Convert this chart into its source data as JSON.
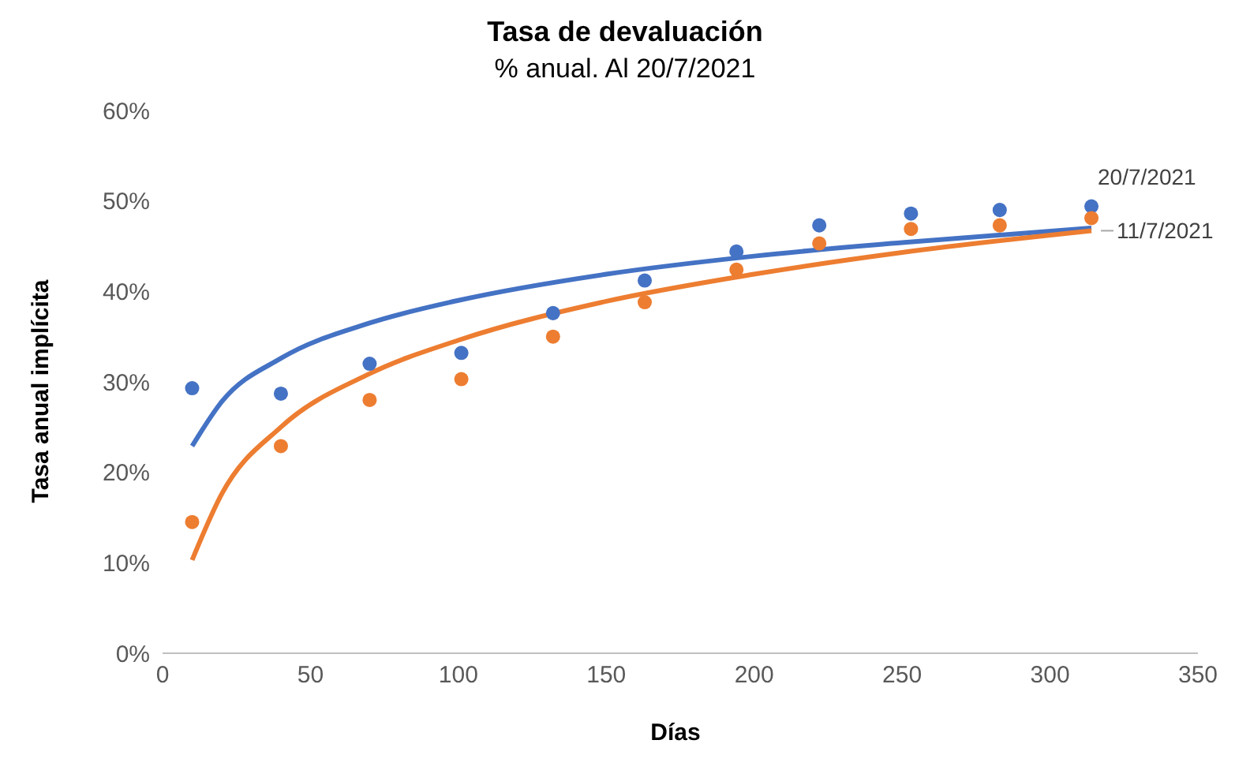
{
  "chart_data": {
    "type": "scatter",
    "title": "Tasa de devaluación",
    "subtitle": "% anual. Al 20/7/2021",
    "xlabel": "Días",
    "ylabel": "Tasa anual implícita",
    "xlim": [
      0,
      350
    ],
    "xticks": [
      0,
      50,
      100,
      150,
      200,
      250,
      300,
      350
    ],
    "ylim": [
      0,
      60
    ],
    "yticks": [
      {
        "value": 0,
        "label": "0%"
      },
      {
        "value": 10,
        "label": "10%"
      },
      {
        "value": 20,
        "label": "20%"
      },
      {
        "value": 30,
        "label": "30%"
      },
      {
        "value": 40,
        "label": "40%"
      },
      {
        "value": 50,
        "label": "50%"
      },
      {
        "value": 60,
        "label": "60%"
      }
    ],
    "grid": false,
    "legend": false,
    "x": [
      10,
      40,
      70,
      101,
      132,
      163,
      194,
      222,
      253,
      283,
      314
    ],
    "series": [
      {
        "name": "20/7/2021",
        "color": "#4472c4",
        "marker": "circle",
        "values": [
          29.3,
          28.7,
          32.0,
          33.2,
          37.6,
          41.2,
          44.4,
          47.3,
          48.6,
          49.0,
          49.4
        ]
      },
      {
        "name": "11/7/2021",
        "color": "#ed7d31",
        "marker": "circle",
        "values": [
          14.5,
          22.9,
          28.0,
          30.3,
          35.0,
          38.8,
          42.4,
          45.3,
          46.9,
          47.3,
          48.1
        ]
      },
      {
        "type": "line",
        "color": "#4472c4",
        "marker": "none",
        "x": [
          10,
          20,
          40,
          70,
          100,
          150,
          200,
          250,
          314
        ],
        "values": [
          22.9,
          27.8,
          32.6,
          36.5,
          39.0,
          41.9,
          43.9,
          45.4,
          47.0
        ]
      },
      {
        "type": "line",
        "color": "#ed7d31",
        "marker": "none",
        "x": [
          10,
          20,
          40,
          70,
          100,
          150,
          200,
          250,
          314
        ],
        "values": [
          10.3,
          17.6,
          25.0,
          30.9,
          34.6,
          38.9,
          41.9,
          44.3,
          46.7
        ]
      }
    ]
  }
}
